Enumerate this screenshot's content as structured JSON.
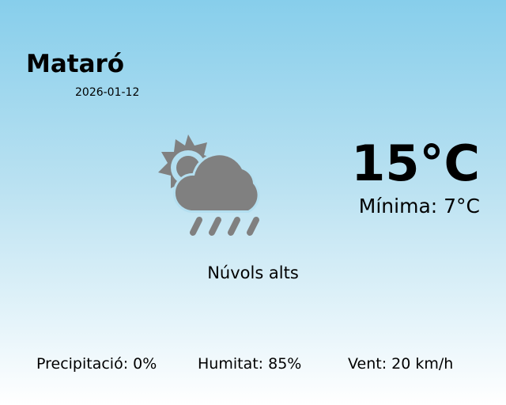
{
  "location": {
    "city": "Mataró",
    "date": "2026-01-12"
  },
  "current": {
    "icon": "partly-cloudy-rain-icon",
    "temperature": "15°C",
    "min_temperature": "Mínima: 7°C",
    "description": "Núvols alts"
  },
  "stats": {
    "precipitation": "Precipitació: 0%",
    "humidity": "Humitat: 85%",
    "wind": "Vent: 20 km/h"
  },
  "colors": {
    "icon": "#808080",
    "background_top": "#87ceeb",
    "background_bottom": "#ffffff"
  }
}
